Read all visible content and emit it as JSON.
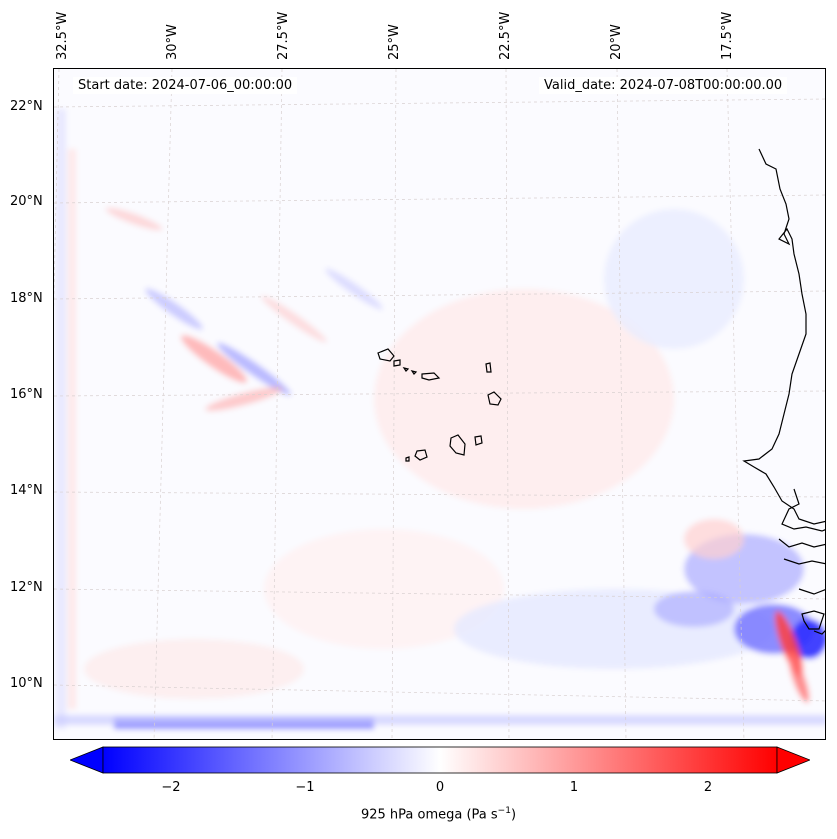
{
  "map": {
    "start_label": "Start date: 2024-07-06_00:00:00",
    "valid_label": "Valid_date: 2024-07-08T00:00:00.00",
    "lon_labels": [
      "32.5°W",
      "30°W",
      "27.5°W",
      "25°W",
      "22.5°W",
      "20°W",
      "17.5°W"
    ],
    "lat_labels": [
      "22°N",
      "20°N",
      "18°N",
      "16°N",
      "14°N",
      "12°N",
      "10°N"
    ],
    "coast_color": "#000000",
    "grid_color": "#c8c8c8"
  },
  "colorbar": {
    "min": -2.5,
    "max": 2.5,
    "ticks": [
      "−2",
      "−1",
      "0",
      "1",
      "2"
    ],
    "tick_values": [
      -2,
      -1,
      0,
      1,
      2
    ],
    "label_main": "925 hPa omega (Pa s",
    "label_sup": "−1",
    "label_end": ")",
    "color_neg": "#0000ff",
    "color_mid": "#ffffff",
    "color_pos": "#ff0000"
  }
}
